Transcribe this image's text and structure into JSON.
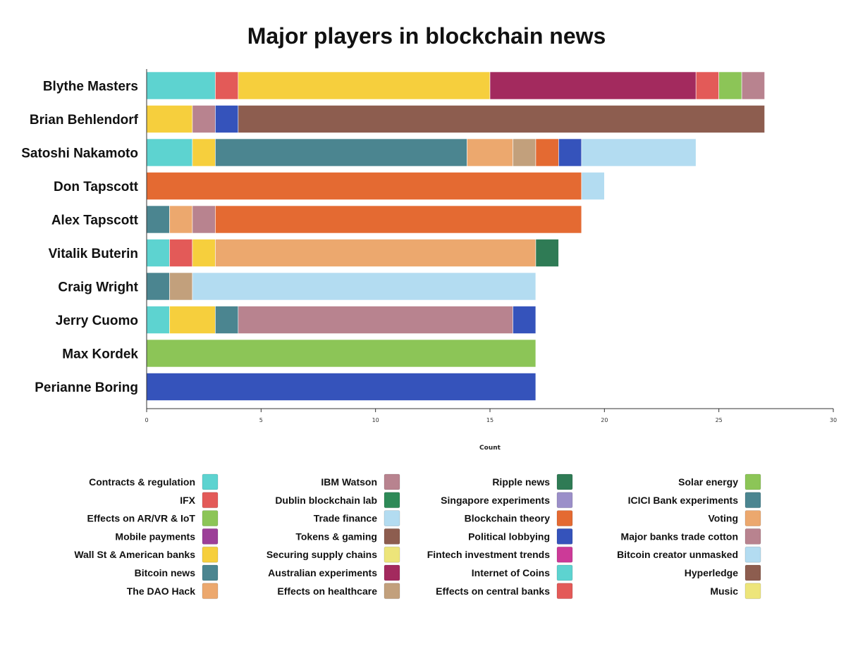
{
  "chart_data": {
    "type": "bar",
    "orientation": "horizontal",
    "stacked": true,
    "title": "Major players in blockchain news",
    "xlabel": "Count",
    "ylabel": "",
    "xlim": [
      0,
      30
    ],
    "xticks": [
      "0",
      "5",
      "10",
      "15",
      "20",
      "25",
      "30"
    ],
    "grid": false,
    "legend_position": "bottom",
    "categories": [
      "Blythe Masters",
      "Brian Behlendorf",
      "Satoshi Nakamoto",
      "Don Tapscott",
      "Alex Tapscott",
      "Vitalik Buterin",
      "Craig Wright",
      "Jerry Cuomo",
      "Max Kordek",
      "Perianne Boring"
    ],
    "topics": [
      {
        "name": "Contracts & regulation",
        "color": "#5dd3d0"
      },
      {
        "name": "IFX",
        "color": "#e35a58"
      },
      {
        "name": "Effects on AR/VR & IoT",
        "color": "#8cc557"
      },
      {
        "name": "Mobile payments",
        "color": "#9c3f98"
      },
      {
        "name": "Wall St & American banks",
        "color": "#f6cf3d"
      },
      {
        "name": "Bitcoin news",
        "color": "#4b8590"
      },
      {
        "name": "The DAO Hack",
        "color": "#eca86e"
      },
      {
        "name": "IBM Watson",
        "color": "#b8838f"
      },
      {
        "name": "Dublin blockchain lab",
        "color": "#2e8a57"
      },
      {
        "name": "Trade finance",
        "color": "#b3dcf1"
      },
      {
        "name": "Tokens & gaming",
        "color": "#8d5d4f"
      },
      {
        "name": "Securing supply chains",
        "color": "#ede57a"
      },
      {
        "name": "Australian experiments",
        "color": "#a32a5e"
      },
      {
        "name": "Effects on healthcare",
        "color": "#c2a07c"
      },
      {
        "name": "Ripple news",
        "color": "#2f7b55"
      },
      {
        "name": "Singapore experiments",
        "color": "#9b8fc9"
      },
      {
        "name": "Blockchain theory",
        "color": "#e46a32"
      },
      {
        "name": "Political lobbying",
        "color": "#3553bb"
      },
      {
        "name": "Fintech investment trends",
        "color": "#cc3a98"
      },
      {
        "name": "Internet of Coins",
        "color": "#5dd3d0"
      },
      {
        "name": "Effects on central banks",
        "color": "#e35a58"
      },
      {
        "name": "Solar energy",
        "color": "#8cc557"
      },
      {
        "name": "ICICI Bank experiments",
        "color": "#4b8590"
      },
      {
        "name": "Voting",
        "color": "#eca86e"
      },
      {
        "name": "Major banks trade cotton",
        "color": "#b8838f"
      },
      {
        "name": "Bitcoin creator unmasked",
        "color": "#b3dcf1"
      },
      {
        "name": "Hyperledge",
        "color": "#8d5d4f"
      },
      {
        "name": "Music",
        "color": "#ede57a"
      }
    ],
    "bars": [
      {
        "name": "Blythe Masters",
        "segments": [
          {
            "topic": "Contracts & regulation",
            "value": 3
          },
          {
            "topic": "IFX",
            "value": 1
          },
          {
            "topic": "Wall St & American banks",
            "value": 11
          },
          {
            "topic": "Australian experiments",
            "value": 9
          },
          {
            "topic": "Effects on central banks",
            "value": 1
          },
          {
            "topic": "Solar energy",
            "value": 1
          },
          {
            "topic": "Major banks trade cotton",
            "value": 1
          }
        ]
      },
      {
        "name": "Brian Behlendorf",
        "segments": [
          {
            "topic": "Wall St & American banks",
            "value": 2
          },
          {
            "topic": "IBM Watson",
            "value": 1
          },
          {
            "topic": "Political lobbying",
            "value": 1
          },
          {
            "topic": "Hyperledge",
            "value": 23
          }
        ]
      },
      {
        "name": "Satoshi Nakamoto",
        "segments": [
          {
            "topic": "Contracts & regulation",
            "value": 2
          },
          {
            "topic": "Wall St & American banks",
            "value": 1
          },
          {
            "topic": "Bitcoin news",
            "value": 11
          },
          {
            "topic": "The DAO Hack",
            "value": 2
          },
          {
            "topic": "Effects on healthcare",
            "value": 1
          },
          {
            "topic": "Blockchain theory",
            "value": 1
          },
          {
            "topic": "Political lobbying",
            "value": 1
          },
          {
            "topic": "Bitcoin creator unmasked",
            "value": 5
          }
        ]
      },
      {
        "name": "Don Tapscott",
        "segments": [
          {
            "topic": "Blockchain theory",
            "value": 19
          },
          {
            "topic": "Trade finance",
            "value": 1
          }
        ]
      },
      {
        "name": "Alex Tapscott",
        "segments": [
          {
            "topic": "Bitcoin news",
            "value": 1
          },
          {
            "topic": "The DAO Hack",
            "value": 1
          },
          {
            "topic": "IBM Watson",
            "value": 1
          },
          {
            "topic": "Blockchain theory",
            "value": 16
          }
        ]
      },
      {
        "name": "Vitalik Buterin",
        "segments": [
          {
            "topic": "Contracts & regulation",
            "value": 1
          },
          {
            "topic": "IFX",
            "value": 1
          },
          {
            "topic": "Wall St & American banks",
            "value": 1
          },
          {
            "topic": "The DAO Hack",
            "value": 14
          },
          {
            "topic": "Ripple news",
            "value": 1
          }
        ]
      },
      {
        "name": "Craig Wright",
        "segments": [
          {
            "topic": "Bitcoin news",
            "value": 1
          },
          {
            "topic": "Effects on healthcare",
            "value": 1
          },
          {
            "topic": "Bitcoin creator unmasked",
            "value": 15
          }
        ]
      },
      {
        "name": "Jerry Cuomo",
        "segments": [
          {
            "topic": "Contracts & regulation",
            "value": 1
          },
          {
            "topic": "Wall St & American banks",
            "value": 2
          },
          {
            "topic": "Bitcoin news",
            "value": 1
          },
          {
            "topic": "IBM Watson",
            "value": 12
          },
          {
            "topic": "Political lobbying",
            "value": 1
          }
        ]
      },
      {
        "name": "Max Kordek",
        "segments": [
          {
            "topic": "Solar energy",
            "value": 17
          }
        ]
      },
      {
        "name": "Perianne Boring",
        "segments": [
          {
            "topic": "Political lobbying",
            "value": 17
          }
        ]
      }
    ]
  }
}
